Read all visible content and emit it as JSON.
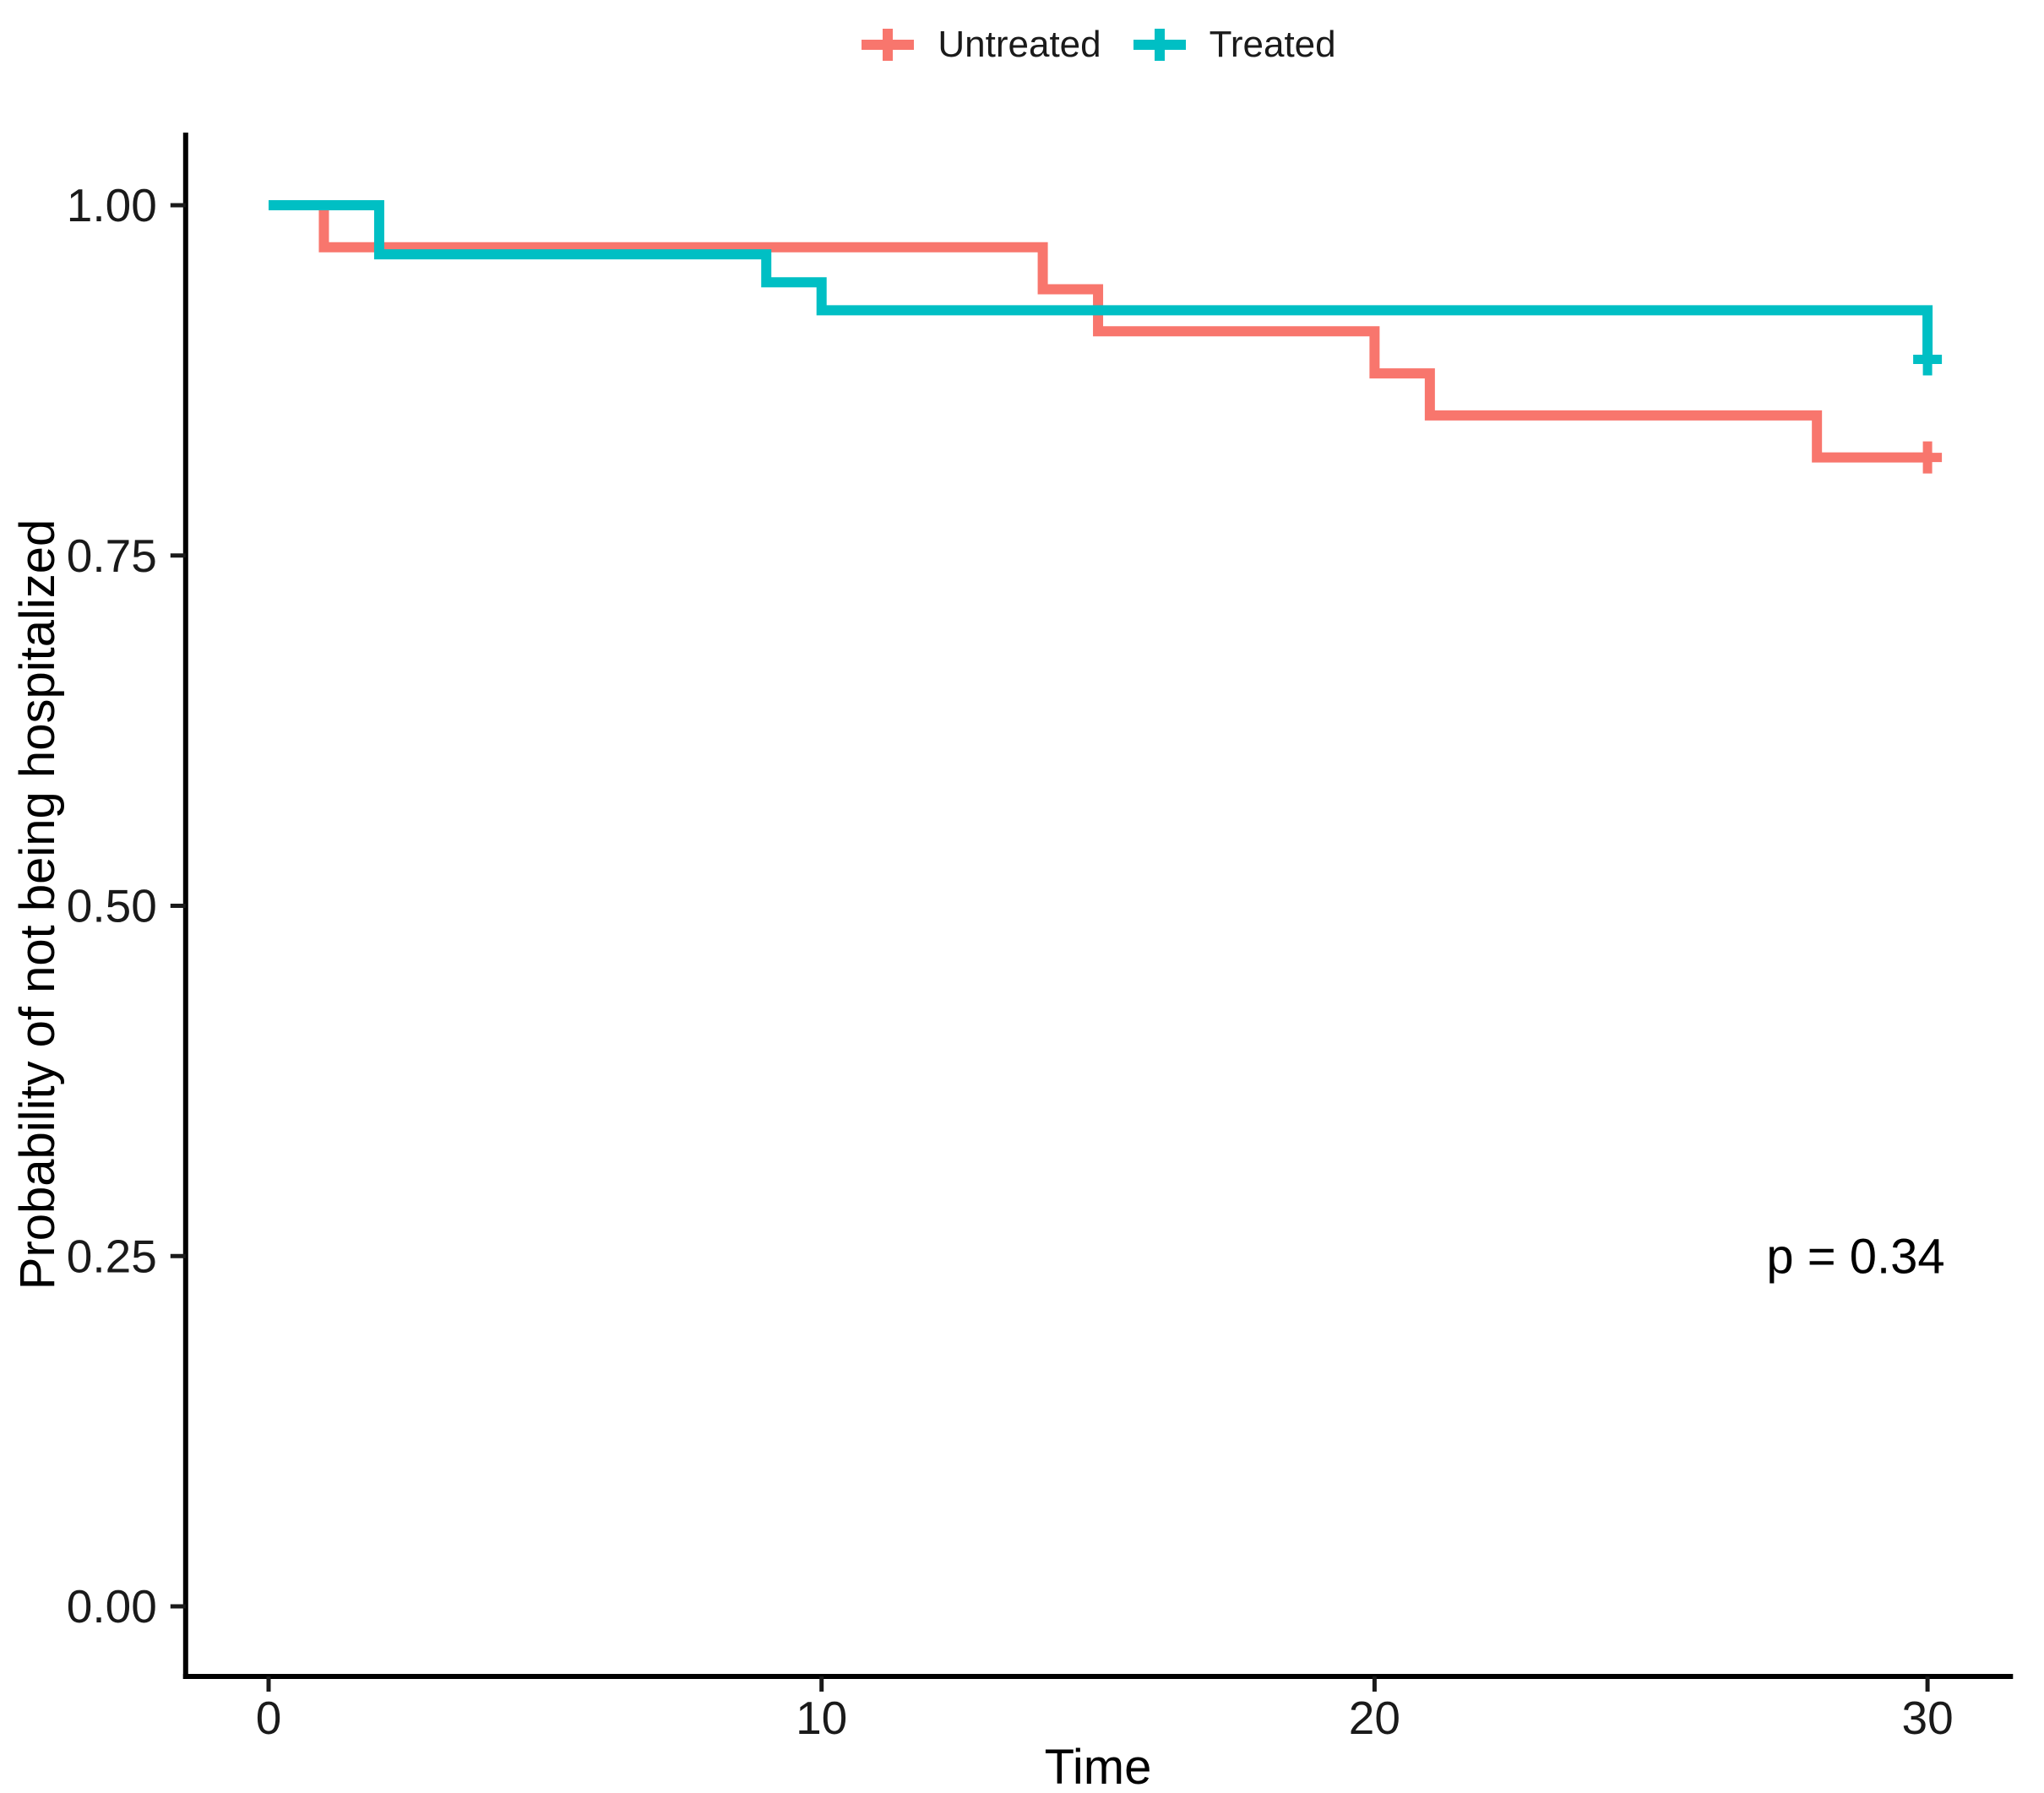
{
  "figure": {
    "background": "#ffffff"
  },
  "legend": {
    "position": "top-center",
    "items": [
      {
        "label": "Untreated",
        "color": "#F8766D",
        "marker": "plus-line"
      },
      {
        "label": "Treated",
        "color": "#00BFC4",
        "marker": "plus-line"
      }
    ]
  },
  "chart_data": {
    "type": "line",
    "subtype": "kaplan-meier-survival-step",
    "title": "",
    "xlabel": "Time",
    "ylabel": "Probability of not being hospitalized",
    "xlim": [
      -1.5,
      31.5
    ],
    "ylim": [
      -0.05,
      1.05
    ],
    "x_ticks": [
      0,
      10,
      20,
      30
    ],
    "y_ticks": [
      {
        "value": 0,
        "label": "0.00"
      },
      {
        "value": 0.25,
        "label": "0.25"
      },
      {
        "value": 0.5,
        "label": "0.50"
      },
      {
        "value": 0.75,
        "label": "0.75"
      },
      {
        "value": 1,
        "label": "1.00"
      }
    ],
    "grid": false,
    "legend_position": "top",
    "annotation": {
      "text": "p = 0.34",
      "x": 28.7,
      "y": 0.25
    },
    "series": [
      {
        "name": "Untreated",
        "color": "#F8766D",
        "steps": [
          [
            0,
            1.0
          ],
          [
            1,
            0.97
          ],
          [
            14,
            0.94
          ],
          [
            15,
            0.91
          ],
          [
            20,
            0.88
          ],
          [
            21,
            0.85
          ],
          [
            28,
            0.82
          ],
          [
            30,
            0.82
          ]
        ],
        "censored": [
          [
            30,
            0.82
          ]
        ]
      },
      {
        "name": "Treated",
        "color": "#00BFC4",
        "steps": [
          [
            0,
            1.0
          ],
          [
            2,
            0.965
          ],
          [
            9,
            0.945
          ],
          [
            10,
            0.925
          ],
          [
            30,
            0.89
          ]
        ],
        "censored": [
          [
            30,
            0.89
          ]
        ]
      }
    ]
  }
}
